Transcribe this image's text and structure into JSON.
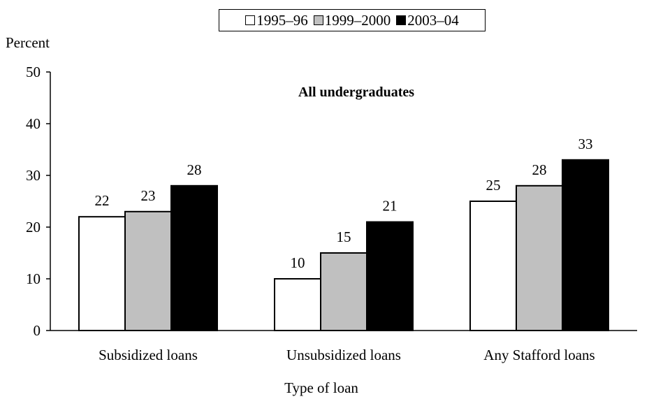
{
  "chart_data": {
    "type": "bar",
    "title": "All undergraduates",
    "ylabel": "Percent",
    "xlabel": "Type of loan",
    "ylim": [
      0,
      50
    ],
    "yticks": [
      0,
      10,
      20,
      30,
      40,
      50
    ],
    "categories": [
      "Subsidized loans",
      "Unsubsidized loans",
      "Any Stafford loans"
    ],
    "series": [
      {
        "name": "1995–96",
        "values": [
          22,
          10,
          25
        ],
        "color": "#ffffff"
      },
      {
        "name": "1999–2000",
        "values": [
          23,
          15,
          28
        ],
        "color": "#c0c0c0"
      },
      {
        "name": "2003–04",
        "values": [
          28,
          21,
          33
        ],
        "color": "#000000"
      }
    ],
    "legend_position": "top-center",
    "grid": false
  }
}
